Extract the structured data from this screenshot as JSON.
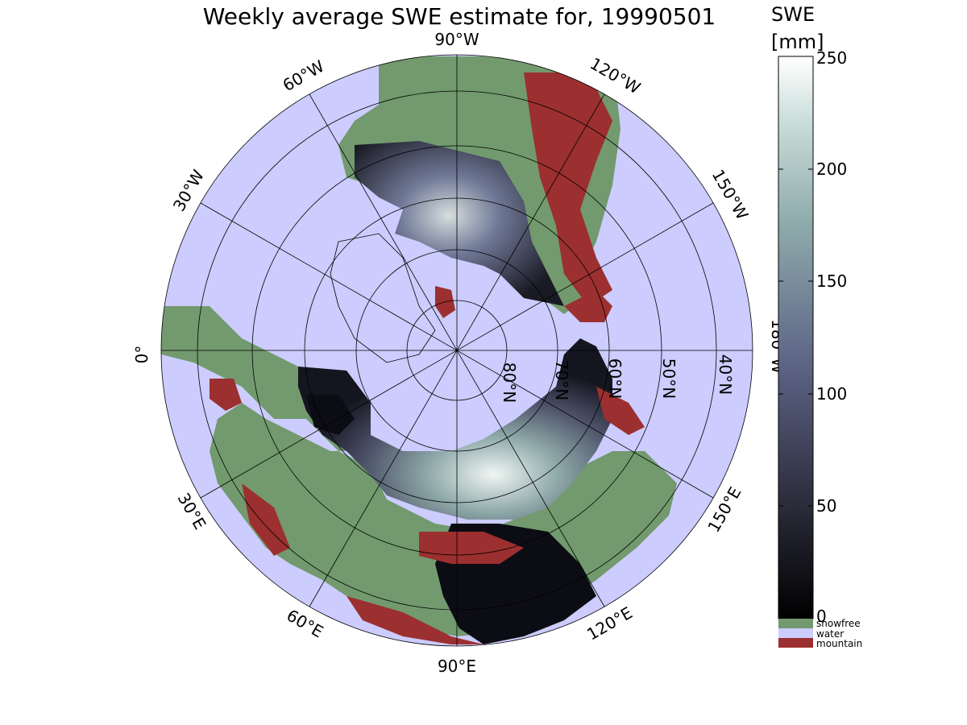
{
  "title": "Weekly average SWE estimate for, 19990501",
  "colorbar": {
    "title": "SWE",
    "units": "[mm]",
    "ticks": [
      "0",
      "50",
      "100",
      "150",
      "200",
      "250"
    ],
    "range": [
      0,
      250
    ],
    "categories": [
      {
        "label": "snowfree",
        "color": "#729a6e"
      },
      {
        "label": "water",
        "color": "#ccccfe"
      },
      {
        "label": "mountain",
        "color": "#9c2f2f"
      }
    ]
  },
  "graticule": {
    "meridian_labels": [
      "90°W",
      "60°W",
      "30°W",
      "0°",
      "120°W",
      "150°W",
      "180°W",
      "30°E",
      "60°E",
      "90°E",
      "120°E",
      "150°E"
    ],
    "parallel_labels": [
      "40°N",
      "50°N",
      "60°N",
      "70°N",
      "80°N"
    ]
  },
  "colors": {
    "water": "#ccccfe",
    "snowfree": "#729a6e",
    "mountain": "#9c2f2f",
    "swe_low": "#0c0c14",
    "swe_mid": "#5e6585",
    "swe_high": "#f4f8f6"
  }
}
